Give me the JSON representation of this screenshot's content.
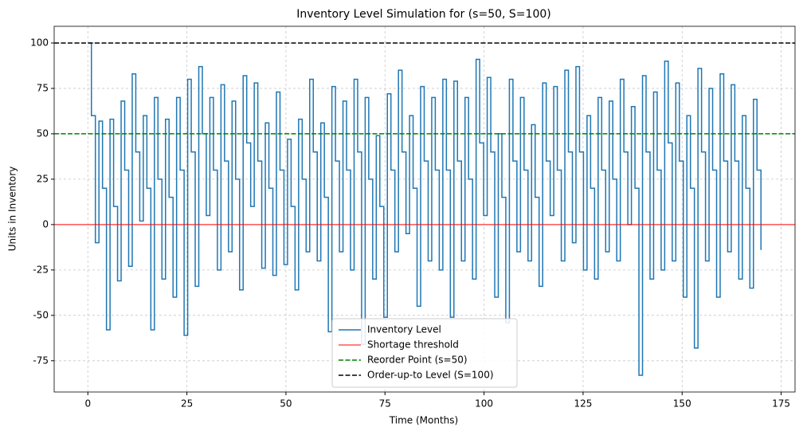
{
  "chart_data": {
    "type": "line",
    "title": "Inventory Level Simulation for (s=50, S=100)",
    "x_label": "Time (Months)",
    "y_label": "Units in Inventory",
    "xlim": [
      -8.5,
      178.5
    ],
    "ylim": [
      -92.2,
      109.2
    ],
    "xticks": [
      0,
      25,
      50,
      75,
      100,
      125,
      150,
      175
    ],
    "yticks": [
      -75,
      -50,
      -25,
      0,
      25,
      50,
      75,
      100
    ],
    "grid": true,
    "legend_loc": "lower center",
    "step": true,
    "series": [
      {
        "name": "Inventory Level",
        "color": "#1f77b4",
        "x": [
          0,
          0.9,
          1.9,
          2.8,
          3.7,
          4.7,
          5.6,
          6.5,
          7.5,
          8.4,
          9.3,
          10.3,
          11.2,
          12.1,
          13.1,
          14,
          14.9,
          15.9,
          16.8,
          17.7,
          18.7,
          19.6,
          20.5,
          21.5,
          22.4,
          23.3,
          24.3,
          25.2,
          26.1,
          27.1,
          28,
          28.9,
          29.9,
          30.8,
          31.7,
          32.7,
          33.6,
          34.5,
          35.5,
          36.4,
          37.3,
          38.3,
          39.2,
          40.1,
          41.1,
          42,
          42.9,
          43.9,
          44.8,
          45.7,
          46.7,
          47.6,
          48.5,
          49.5,
          50.4,
          51.3,
          52.3,
          53.2,
          54.1,
          55.1,
          56,
          56.9,
          57.9,
          58.8,
          59.7,
          60.7,
          61.6,
          62.5,
          63.5,
          64.4,
          65.3,
          66.3,
          67.2,
          68.1,
          69.1,
          70,
          70.9,
          71.9,
          72.8,
          73.7,
          74.7,
          75.6,
          76.5,
          77.5,
          78.4,
          79.3,
          80.3,
          81.2,
          82.1,
          83.1,
          84,
          84.9,
          85.9,
          86.8,
          87.7,
          88.7,
          89.6,
          90.5,
          91.5,
          92.4,
          93.3,
          94.3,
          95.2,
          96.1,
          97.1,
          98,
          98.9,
          99.9,
          100.8,
          101.7,
          102.7,
          103.6,
          104.5,
          105.5,
          106.4,
          107.3,
          108.3,
          109.2,
          110.1,
          111.1,
          112,
          112.9,
          113.9,
          114.8,
          115.7,
          116.7,
          117.6,
          118.5,
          119.5,
          120.4,
          121.3,
          122.3,
          123.2,
          124.1,
          125.1,
          126,
          126.9,
          127.9,
          128.8,
          129.7,
          130.7,
          131.6,
          132.5,
          133.5,
          134.4,
          135.3,
          136.3,
          137.2,
          138.1,
          139.1,
          140,
          140.9,
          141.9,
          142.8,
          143.7,
          144.7,
          145.6,
          146.5,
          147.5,
          148.4,
          149.3,
          150.3,
          151.2,
          152.1,
          153.1,
          154,
          154.9,
          155.9,
          156.8,
          157.7,
          158.7,
          159.6,
          160.5,
          161.5,
          162.4,
          163.3,
          164.3,
          165.2,
          166.1,
          167.1,
          168,
          168.9,
          169.9
        ],
        "values": [
          100,
          60,
          -10,
          57,
          20,
          -58,
          58,
          10,
          -31,
          68,
          30,
          -23,
          83,
          40,
          2,
          60,
          20,
          -58,
          70,
          25,
          -30,
          58,
          15,
          -40,
          70,
          30,
          -61,
          80,
          40,
          -34,
          87,
          50,
          5,
          70,
          30,
          -25,
          77,
          35,
          -15,
          68,
          25,
          -36,
          82,
          45,
          10,
          78,
          35,
          -24,
          56,
          20,
          -28,
          73,
          30,
          -22,
          47,
          10,
          -36,
          58,
          25,
          -15,
          80,
          40,
          -20,
          56,
          15,
          -59,
          76,
          35,
          -15,
          68,
          30,
          -25,
          80,
          40,
          -66,
          70,
          25,
          -30,
          49,
          10,
          -51,
          72,
          30,
          -15,
          85,
          40,
          -5,
          60,
          20,
          -45,
          76,
          35,
          -20,
          70,
          30,
          -25,
          80,
          30,
          -51,
          79,
          35,
          -20,
          70,
          25,
          -30,
          91,
          45,
          5,
          81,
          40,
          -40,
          50,
          15,
          -54,
          80,
          35,
          -15,
          70,
          30,
          -20,
          55,
          15,
          -34,
          78,
          35,
          5,
          76,
          30,
          -20,
          85,
          40,
          -10,
          87,
          40,
          -25,
          60,
          20,
          -30,
          70,
          30,
          -15,
          68,
          25,
          -20,
          80,
          40,
          0,
          65,
          20,
          -83,
          82,
          40,
          -30,
          73,
          30,
          -25,
          90,
          45,
          -20,
          78,
          35,
          -40,
          60,
          20,
          -68,
          86,
          40,
          -20,
          75,
          30,
          -40,
          83,
          35,
          -15,
          77,
          35,
          -30,
          60,
          20,
          -35,
          69,
          30,
          -14
        ]
      }
    ],
    "ref_lines": [
      {
        "name": "Shortage threshold",
        "value": 0,
        "color": "#ff0000",
        "dash": false
      },
      {
        "name": "Reorder Point (s=50)",
        "value": 50,
        "color": "#008000",
        "dash": true
      },
      {
        "name": "Order-up-to Level (S=100)",
        "value": 100,
        "color": "#000000",
        "dash": true
      }
    ]
  }
}
